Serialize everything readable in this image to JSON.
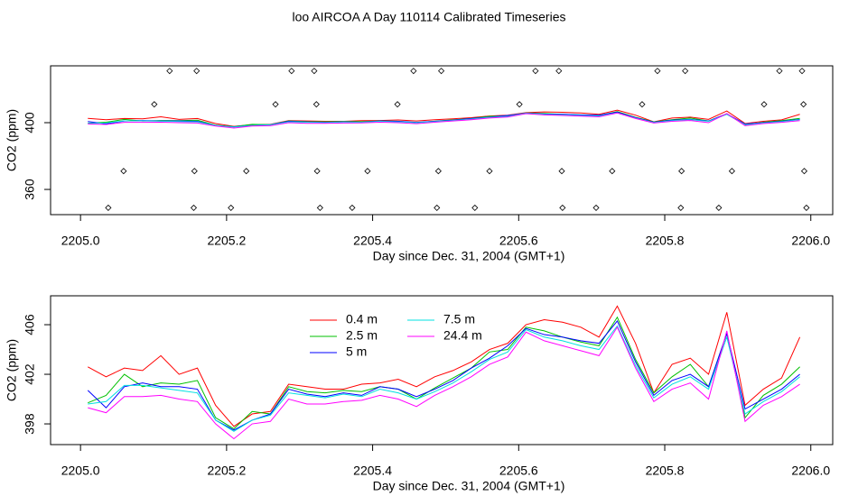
{
  "chart_data": [
    {
      "type": "line",
      "title": "loo AIRCOA A  Day 110114  Calibrated Timeseries",
      "xlabel": "Day since Dec. 31, 2004 (GMT+1)",
      "ylabel": "CO2 (ppm)",
      "xlim": [
        2204.959,
        2206.03
      ],
      "ylim": [
        344.9,
        434.05
      ],
      "xticks": [
        {
          "value": 2205,
          "label": "2205.0"
        },
        2205.2,
        2205.4,
        2205.6,
        2205.8,
        {
          "value": 2206,
          "label": "2206.0"
        }
      ],
      "yticks": [
        360,
        400
      ],
      "x": [
        2205.01,
        2205.035,
        2205.06,
        2205.085,
        2205.11,
        2205.135,
        2205.16,
        2205.185,
        2205.21,
        2205.235,
        2205.26,
        2205.285,
        2205.31,
        2205.335,
        2205.36,
        2205.385,
        2205.41,
        2205.435,
        2205.46,
        2205.485,
        2205.51,
        2205.535,
        2205.56,
        2205.585,
        2205.61,
        2205.635,
        2205.66,
        2205.685,
        2205.71,
        2205.735,
        2205.76,
        2205.785,
        2205.81,
        2205.835,
        2205.86,
        2205.885,
        2205.91,
        2205.935,
        2205.96,
        2205.985
      ],
      "series": [
        {
          "color": "#ff0000",
          "values": [
            402.6,
            401.8,
            402.5,
            402.3,
            403.5,
            402.0,
            402.5,
            399.5,
            397.8,
            398.8,
            399.0,
            401.2,
            401.0,
            400.8,
            400.8,
            401.2,
            401.3,
            401.6,
            401.0,
            401.8,
            402.3,
            403.0,
            404.0,
            404.5,
            406.0,
            406.4,
            406.2,
            405.8,
            405.0,
            407.5,
            404.5,
            400.5,
            402.8,
            403.3,
            402.0,
            407.0,
            399.5,
            400.8,
            401.7,
            405.0
          ]
        },
        {
          "color": "#00c000",
          "values": [
            399.7,
            400.3,
            402.0,
            401.0,
            401.3,
            401.2,
            401.5,
            398.5,
            397.6,
            399.0,
            398.8,
            401.0,
            400.6,
            400.5,
            400.7,
            400.6,
            401.0,
            400.8,
            400.0,
            400.9,
            401.7,
            402.5,
            403.8,
            404.0,
            405.8,
            405.5,
            405.0,
            404.6,
            404.3,
            406.6,
            403.2,
            400.5,
            401.8,
            402.8,
            401.0,
            405.3,
            398.5,
            400.3,
            401.2,
            402.6
          ]
        },
        {
          "color": "#0000ff",
          "values": [
            400.7,
            399.3,
            401.0,
            401.3,
            401.0,
            401.0,
            400.8,
            398.3,
            397.5,
            398.3,
            398.8,
            400.8,
            400.4,
            400.2,
            400.5,
            400.3,
            401.0,
            400.8,
            400.2,
            400.8,
            401.5,
            402.5,
            403.3,
            404.3,
            405.7,
            405.2,
            405.0,
            404.7,
            404.5,
            406.3,
            403.0,
            400.3,
            401.5,
            402.0,
            401.0,
            405.3,
            399.2,
            400.0,
            400.8,
            402.0
          ]
        },
        {
          "color": "#00e0e0",
          "values": [
            399.6,
            399.8,
            401.1,
            401.1,
            400.9,
            400.7,
            400.5,
            398.3,
            397.4,
            398.3,
            398.7,
            400.5,
            400.3,
            400.1,
            400.4,
            400.2,
            400.8,
            400.5,
            400.0,
            400.6,
            401.3,
            402.2,
            403.2,
            403.8,
            405.6,
            405.0,
            404.7,
            404.3,
            404.0,
            405.9,
            402.7,
            400.1,
            401.2,
            401.8,
            400.8,
            405.0,
            398.8,
            399.8,
            400.6,
            401.8
          ]
        },
        {
          "color": "#ff00ff",
          "values": [
            399.3,
            398.9,
            400.2,
            400.2,
            400.3,
            400.0,
            399.8,
            398.0,
            396.8,
            398.0,
            398.2,
            400.0,
            399.6,
            399.6,
            399.8,
            399.9,
            400.3,
            400.0,
            399.4,
            400.3,
            401.0,
            401.8,
            402.8,
            403.4,
            405.4,
            404.7,
            404.3,
            403.9,
            403.5,
            405.8,
            402.5,
            399.8,
            400.8,
            401.3,
            400.0,
            405.5,
            398.2,
            399.5,
            400.2,
            401.2
          ]
        }
      ],
      "points": {
        "color": "#000000",
        "x": [
          2205.122,
          2205.159,
          2205.289,
          2205.32,
          2205.456,
          2205.494,
          2205.623,
          2205.655,
          2205.79,
          2205.828,
          2205.957,
          2205.988,
          2205.101,
          2205.267,
          2205.323,
          2205.434,
          2205.601,
          2205.769,
          2205.936,
          2205.99,
          2205.059,
          2205.156,
          2205.227,
          2205.324,
          2205.393,
          2205.49,
          2205.56,
          2205.659,
          2205.728,
          2205.823,
          2205.892,
          2205.991,
          2205.038,
          2205.155,
          2205.206,
          2205.328,
          2205.372,
          2205.488,
          2205.54,
          2205.66,
          2205.706,
          2205.822,
          2205.874,
          2205.994
        ],
        "values": [
          431,
          431,
          431,
          431,
          431,
          431,
          431,
          431,
          431,
          431,
          431,
          431,
          411,
          411,
          411,
          411,
          411,
          411,
          411,
          411,
          371,
          371,
          371,
          371,
          371,
          371,
          371,
          371,
          371,
          371,
          371,
          371,
          349,
          349,
          349,
          349,
          349,
          349,
          349,
          349,
          349,
          349,
          349,
          349
        ]
      }
    },
    {
      "type": "line",
      "xlabel": "Day since Dec. 31, 2004 (GMT+1)",
      "ylabel": "CO2 (ppm)",
      "xlim": [
        2204.959,
        2206.03
      ],
      "ylim": [
        396.33,
        408.33
      ],
      "xticks": [
        {
          "value": 2205,
          "label": "2205.0"
        },
        2205.2,
        2205.4,
        2205.6,
        2205.8,
        {
          "value": 2206,
          "label": "2206.0"
        }
      ],
      "yticks": [
        398,
        402,
        406
      ],
      "legend": "top",
      "x": [
        2205.01,
        2205.035,
        2205.06,
        2205.085,
        2205.11,
        2205.135,
        2205.16,
        2205.185,
        2205.21,
        2205.235,
        2205.26,
        2205.285,
        2205.31,
        2205.335,
        2205.36,
        2205.385,
        2205.41,
        2205.435,
        2205.46,
        2205.485,
        2205.51,
        2205.535,
        2205.56,
        2205.585,
        2205.61,
        2205.635,
        2205.66,
        2205.685,
        2205.71,
        2205.735,
        2205.76,
        2205.785,
        2205.81,
        2205.835,
        2205.86,
        2205.885,
        2205.91,
        2205.935,
        2205.96,
        2205.985
      ],
      "series": [
        {
          "name": "0.4 m",
          "color": "#ff0000",
          "values": [
            402.6,
            401.8,
            402.5,
            402.3,
            403.5,
            402.0,
            402.5,
            399.5,
            397.8,
            398.8,
            399.0,
            401.2,
            401.0,
            400.8,
            400.8,
            401.2,
            401.3,
            401.6,
            401.0,
            401.8,
            402.3,
            403.0,
            404.0,
            404.5,
            406.0,
            406.4,
            406.2,
            405.8,
            405.0,
            407.5,
            404.5,
            400.5,
            402.8,
            403.3,
            402.0,
            407.0,
            399.5,
            400.8,
            401.7,
            405.0
          ]
        },
        {
          "name": "2.5 m",
          "color": "#00c000",
          "values": [
            399.7,
            400.3,
            402.0,
            401.0,
            401.3,
            401.2,
            401.5,
            398.5,
            397.6,
            399.0,
            398.8,
            401.0,
            400.6,
            400.5,
            400.7,
            400.6,
            401.0,
            400.8,
            400.0,
            400.9,
            401.7,
            402.5,
            403.8,
            404.0,
            405.8,
            405.5,
            405.0,
            404.6,
            404.3,
            406.6,
            403.2,
            400.5,
            401.8,
            402.8,
            401.0,
            405.3,
            398.5,
            400.3,
            401.2,
            402.6
          ]
        },
        {
          "name": "5 m",
          "color": "#0000ff",
          "values": [
            400.7,
            399.3,
            401.0,
            401.3,
            401.0,
            401.0,
            400.8,
            398.3,
            397.5,
            398.3,
            398.8,
            400.8,
            400.4,
            400.2,
            400.5,
            400.3,
            401.0,
            400.8,
            400.2,
            400.8,
            401.5,
            402.5,
            403.3,
            404.3,
            405.7,
            405.2,
            405.0,
            404.7,
            404.5,
            406.3,
            403.0,
            400.3,
            401.5,
            402.0,
            401.0,
            405.3,
            399.2,
            400.0,
            400.8,
            402.0
          ]
        },
        {
          "name": "7.5 m",
          "color": "#00e0e0",
          "values": [
            399.6,
            399.8,
            401.1,
            401.1,
            400.9,
            400.7,
            400.5,
            398.3,
            397.4,
            398.3,
            398.7,
            400.5,
            400.3,
            400.1,
            400.4,
            400.2,
            400.8,
            400.5,
            400.0,
            400.6,
            401.3,
            402.2,
            403.2,
            403.8,
            405.6,
            405.0,
            404.7,
            404.3,
            404.0,
            405.9,
            402.7,
            400.1,
            401.2,
            401.8,
            400.8,
            405.0,
            398.8,
            399.8,
            400.6,
            401.8
          ]
        },
        {
          "name": "24.4 m",
          "color": "#ff00ff",
          "values": [
            399.3,
            398.9,
            400.2,
            400.2,
            400.3,
            400.0,
            399.8,
            398.0,
            396.8,
            398.0,
            398.2,
            400.0,
            399.6,
            399.6,
            399.8,
            399.9,
            400.3,
            400.0,
            399.4,
            400.3,
            401.0,
            401.8,
            402.8,
            403.4,
            405.4,
            404.7,
            404.3,
            403.9,
            403.5,
            405.8,
            402.5,
            399.8,
            400.8,
            401.3,
            400.0,
            405.5,
            398.2,
            399.5,
            400.2,
            401.2
          ]
        }
      ]
    }
  ]
}
